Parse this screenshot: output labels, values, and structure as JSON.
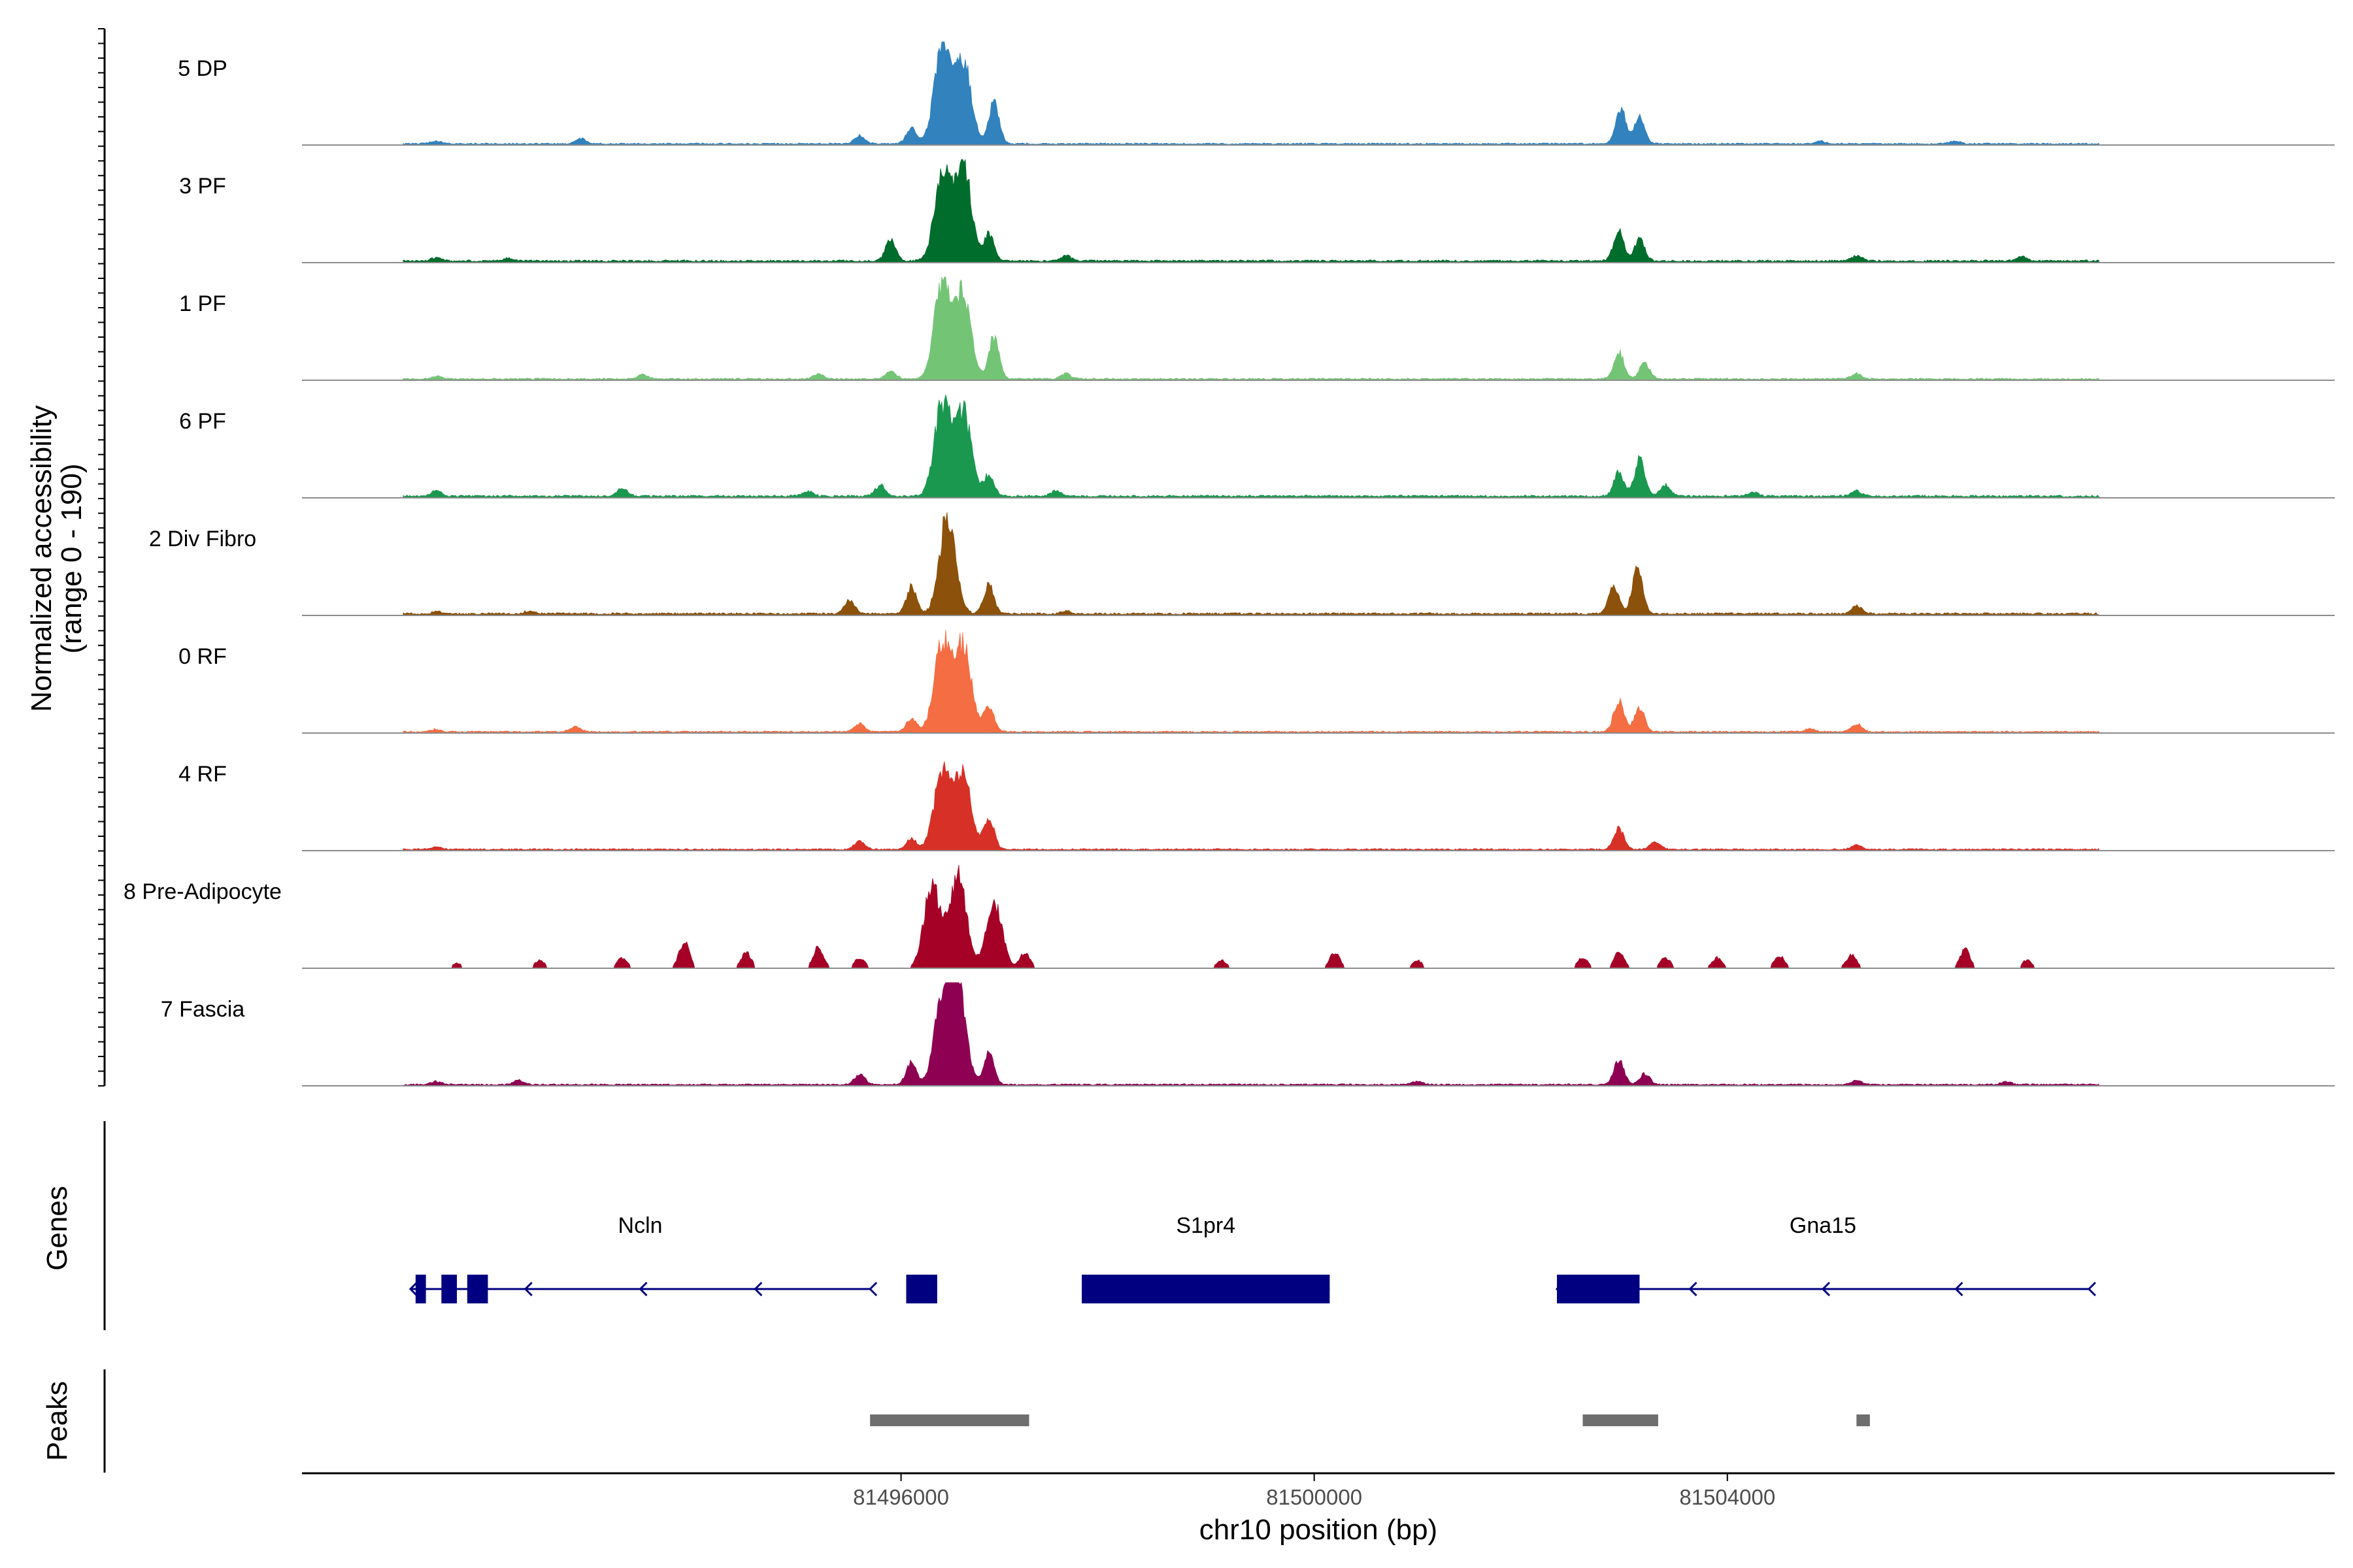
{
  "chart_data": {
    "type": "area",
    "title": "",
    "xlabel": "chr10 position (bp)",
    "ylabel": "Normalized accessibility\n(range 0 - 190)",
    "ylabel_lines": [
      "Normalized accessibility",
      "(range 0 - 190)"
    ],
    "ylim": [
      0,
      190
    ],
    "xlim": [
      81490200,
      81509880
    ],
    "x_ticks": [
      81496000,
      81500000,
      81504000
    ],
    "x_tick_labels": [
      "81496000",
      "81500000",
      "81504000"
    ],
    "tracks": [
      {
        "name": "5 DP",
        "color": "#3182BD",
        "peaks": [
          [
            81491500,
            6
          ],
          [
            81492900,
            10
          ],
          [
            81495600,
            16
          ],
          [
            81496100,
            30
          ],
          [
            81496400,
            185
          ],
          [
            81496600,
            160
          ],
          [
            81496900,
            80
          ],
          [
            81502970,
            65
          ],
          [
            81503150,
            50
          ],
          [
            81504900,
            5
          ],
          [
            81506200,
            5
          ]
        ],
        "baseline": 3
      },
      {
        "name": "3 PF",
        "color": "#006D2C",
        "peaks": [
          [
            81491500,
            6
          ],
          [
            81492200,
            5
          ],
          [
            81495900,
            40
          ],
          [
            81496400,
            160
          ],
          [
            81496600,
            185
          ],
          [
            81496850,
            50
          ],
          [
            81497600,
            10
          ],
          [
            81502950,
            55
          ],
          [
            81503150,
            40
          ],
          [
            81505250,
            10
          ],
          [
            81506850,
            8
          ]
        ],
        "baseline": 4
      },
      {
        "name": "1 PF",
        "color": "#74C476",
        "peaks": [
          [
            81491500,
            5
          ],
          [
            81493500,
            8
          ],
          [
            81495200,
            10
          ],
          [
            81495900,
            15
          ],
          [
            81496400,
            185
          ],
          [
            81496600,
            160
          ],
          [
            81496900,
            80
          ],
          [
            81497600,
            10
          ],
          [
            81502950,
            50
          ],
          [
            81503200,
            30
          ],
          [
            81505250,
            10
          ]
        ],
        "baseline": 3
      },
      {
        "name": "6 PF",
        "color": "#1A9850",
        "peaks": [
          [
            81491500,
            10
          ],
          [
            81493300,
            15
          ],
          [
            81495100,
            10
          ],
          [
            81495800,
            20
          ],
          [
            81496400,
            170
          ],
          [
            81496600,
            160
          ],
          [
            81496850,
            40
          ],
          [
            81497500,
            10
          ],
          [
            81502950,
            45
          ],
          [
            81503150,
            70
          ],
          [
            81503400,
            20
          ],
          [
            81504250,
            8
          ],
          [
            81505250,
            10
          ]
        ],
        "baseline": 4
      },
      {
        "name": "2 Div Fibro",
        "color": "#8C510A",
        "peaks": [
          [
            81491500,
            4
          ],
          [
            81492400,
            5
          ],
          [
            81495500,
            25
          ],
          [
            81496100,
            50
          ],
          [
            81496450,
            185
          ],
          [
            81496850,
            55
          ],
          [
            81497600,
            6
          ],
          [
            81502900,
            55
          ],
          [
            81503130,
            90
          ],
          [
            81505250,
            15
          ]
        ],
        "baseline": 4
      },
      {
        "name": "0 RF",
        "color": "#F46D43",
        "peaks": [
          [
            81491500,
            5
          ],
          [
            81492850,
            10
          ],
          [
            81495600,
            15
          ],
          [
            81496100,
            25
          ],
          [
            81496400,
            170
          ],
          [
            81496600,
            160
          ],
          [
            81496850,
            50
          ],
          [
            81502950,
            60
          ],
          [
            81503150,
            45
          ],
          [
            81504800,
            6
          ],
          [
            81505250,
            15
          ]
        ],
        "baseline": 3
      },
      {
        "name": "4 RF",
        "color": "#D73027",
        "peaks": [
          [
            81491500,
            5
          ],
          [
            81495600,
            15
          ],
          [
            81496100,
            20
          ],
          [
            81496400,
            150
          ],
          [
            81496600,
            140
          ],
          [
            81496850,
            60
          ],
          [
            81502950,
            40
          ],
          [
            81503300,
            15
          ],
          [
            81505250,
            8
          ]
        ],
        "baseline": 3
      },
      {
        "name": "8 Pre-Adipocyte",
        "color": "#A50026",
        "peaks": [
          [
            81491700,
            10
          ],
          [
            81492500,
            15
          ],
          [
            81493300,
            20
          ],
          [
            81493900,
            50
          ],
          [
            81494500,
            30
          ],
          [
            81495200,
            40
          ],
          [
            81495600,
            20
          ],
          [
            81496300,
            160
          ],
          [
            81496550,
            185
          ],
          [
            81496900,
            120
          ],
          [
            81497200,
            30
          ],
          [
            81499100,
            15
          ],
          [
            81500200,
            30
          ],
          [
            81501000,
            15
          ],
          [
            81502600,
            20
          ],
          [
            81502950,
            30
          ],
          [
            81503400,
            20
          ],
          [
            81503900,
            20
          ],
          [
            81504500,
            25
          ],
          [
            81505200,
            25
          ],
          [
            81506300,
            35
          ],
          [
            81506900,
            15
          ]
        ],
        "baseline": 0
      },
      {
        "name": "7 Fascia",
        "color": "#8E0152",
        "peaks": [
          [
            81491500,
            6
          ],
          [
            81492300,
            8
          ],
          [
            81495600,
            20
          ],
          [
            81496100,
            40
          ],
          [
            81496400,
            160
          ],
          [
            81496550,
            185
          ],
          [
            81496850,
            60
          ],
          [
            81501000,
            6
          ],
          [
            81502950,
            45
          ],
          [
            81503200,
            20
          ],
          [
            81505250,
            8
          ],
          [
            81506700,
            6
          ]
        ],
        "baseline": 3
      }
    ],
    "genes": [
      {
        "name": "Ncln",
        "start": 81491250,
        "end": 81495700,
        "strand": "-",
        "exons": [
          [
            81491300,
            81491400
          ],
          [
            81491550,
            81491700
          ],
          [
            81491800,
            81492000
          ],
          [
            81496050,
            81496350
          ]
        ]
      },
      {
        "name": "S1pr4",
        "start": 81497750,
        "end": 81500150,
        "strand": "+",
        "exons": [
          [
            81497750,
            81500150
          ]
        ]
      },
      {
        "name": "Gna15",
        "start": 81502350,
        "end": 81507500,
        "strand": "-",
        "exons": [
          [
            81502350,
            81503150
          ]
        ]
      }
    ],
    "peaks": [
      [
        81495700,
        81497240
      ],
      [
        81502600,
        81503330
      ],
      [
        81505250,
        81505380
      ]
    ],
    "gene_track_label": "Genes",
    "peak_track_label": "Peaks",
    "colors": {
      "axis": "#000000",
      "baseline": "#8C8C8C",
      "gene": "#000080",
      "peak": "#6E6E6E"
    }
  }
}
